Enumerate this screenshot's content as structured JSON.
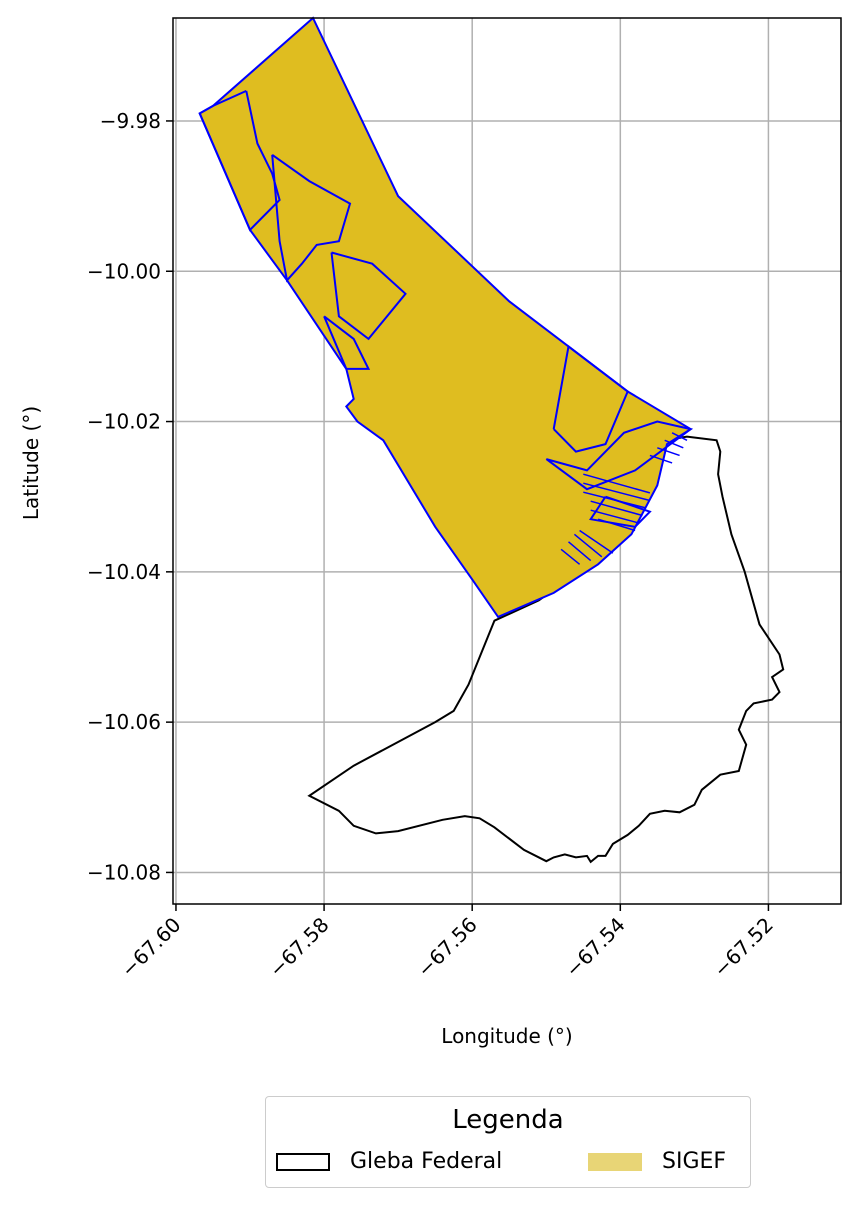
{
  "map": {
    "xlabel": "Longitude (°)",
    "ylabel": "Latitude (°)",
    "x_ticks": [
      -67.6,
      -67.58,
      -67.56,
      -67.54,
      -67.52
    ],
    "x_tick_labels": [
      "−67.60",
      "−67.58",
      "−67.56",
      "−67.54",
      "−67.52"
    ],
    "y_ticks": [
      -9.98,
      -10.0,
      -10.02,
      -10.04,
      -10.06,
      -10.08
    ],
    "y_tick_labels": [
      "−9.98",
      "−10.00",
      "−10.02",
      "−10.04",
      "−10.06",
      "−10.08"
    ],
    "xlim": [
      -67.6004,
      -67.5102
    ],
    "ylim": [
      -10.0842,
      -9.9663
    ],
    "grid": true,
    "colors": {
      "sigef_fill": "#dfbd20",
      "sigef_edge": "#0000ff",
      "gleba_edge": "#000000",
      "grid": "#b0b0b0"
    }
  },
  "gleba_federal": {
    "outline": [
      [
        -67.557,
        -10.0465
      ],
      [
        -67.551,
        -10.0438
      ],
      [
        -67.54,
        -10.036
      ],
      [
        -67.5365,
        -10.0305
      ],
      [
        -67.5348,
        -10.025
      ],
      [
        -67.534,
        -10.0225
      ],
      [
        -67.531,
        -10.022
      ],
      [
        -67.527,
        -10.0225
      ],
      [
        -67.5265,
        -10.024
      ],
      [
        -67.5268,
        -10.027
      ],
      [
        -67.5262,
        -10.03
      ],
      [
        -67.525,
        -10.035
      ],
      [
        -67.5232,
        -10.04
      ],
      [
        -67.5212,
        -10.047
      ],
      [
        -67.5185,
        -10.051
      ],
      [
        -67.518,
        -10.053
      ],
      [
        -67.5195,
        -10.054
      ],
      [
        -67.5185,
        -10.056
      ],
      [
        -67.5195,
        -10.057
      ],
      [
        -67.522,
        -10.0575
      ],
      [
        -67.523,
        -10.0585
      ],
      [
        -67.524,
        -10.061
      ],
      [
        -67.523,
        -10.063
      ],
      [
        -67.524,
        -10.0665
      ],
      [
        -67.5265,
        -10.067
      ],
      [
        -67.529,
        -10.069
      ],
      [
        -67.53,
        -10.071
      ],
      [
        -67.532,
        -10.072
      ],
      [
        -67.534,
        -10.0718
      ],
      [
        -67.536,
        -10.0722
      ],
      [
        -67.5375,
        -10.0738
      ],
      [
        -67.539,
        -10.075
      ],
      [
        -67.541,
        -10.0762
      ],
      [
        -67.542,
        -10.0778
      ],
      [
        -67.543,
        -10.0778
      ],
      [
        -67.544,
        -10.0786
      ],
      [
        -67.5445,
        -10.0778
      ],
      [
        -67.546,
        -10.078
      ],
      [
        -67.5475,
        -10.0776
      ],
      [
        -67.549,
        -10.078
      ],
      [
        -67.55,
        -10.0785
      ],
      [
        -67.553,
        -10.077
      ],
      [
        -67.557,
        -10.074
      ],
      [
        -67.559,
        -10.0728
      ],
      [
        -67.561,
        -10.0725
      ],
      [
        -67.564,
        -10.073
      ],
      [
        -67.57,
        -10.0745
      ],
      [
        -67.573,
        -10.0748
      ],
      [
        -67.576,
        -10.0738
      ],
      [
        -67.578,
        -10.0718
      ],
      [
        -67.582,
        -10.0698
      ],
      [
        -67.576,
        -10.0658
      ],
      [
        -67.565,
        -10.06
      ],
      [
        -67.5625,
        -10.0585
      ],
      [
        -67.5605,
        -10.055
      ],
      [
        -67.557,
        -10.0465
      ]
    ]
  },
  "sigef": {
    "outer": [
      [
        -67.5815,
        -9.9663
      ],
      [
        -67.595,
        -9.978
      ],
      [
        -67.5968,
        -9.979
      ],
      [
        -67.59,
        -9.9945
      ],
      [
        -67.585,
        -10.0012
      ],
      [
        -67.577,
        -10.013
      ],
      [
        -67.5765,
        -10.015
      ],
      [
        -67.576,
        -10.017
      ],
      [
        -67.577,
        -10.018
      ],
      [
        -67.5755,
        -10.02
      ],
      [
        -67.572,
        -10.0225
      ],
      [
        -67.565,
        -10.034
      ],
      [
        -67.56,
        -10.041
      ],
      [
        -67.5565,
        -10.046
      ],
      [
        -67.549,
        -10.0428
      ],
      [
        -67.543,
        -10.039
      ],
      [
        -67.5385,
        -10.035
      ],
      [
        -67.535,
        -10.0285
      ],
      [
        -67.5337,
        -10.023
      ],
      [
        -67.5305,
        -10.021
      ],
      [
        -67.539,
        -10.016
      ],
      [
        -67.555,
        -10.004
      ],
      [
        -67.57,
        -9.99
      ],
      [
        -67.5815,
        -9.9663
      ]
    ],
    "parcels": [
      [
        [
          -67.5905,
          -9.976
        ],
        [
          -67.595,
          -9.978
        ],
        [
          -67.5968,
          -9.979
        ],
        [
          -67.59,
          -9.9945
        ],
        [
          -67.586,
          -9.9905
        ],
        [
          -67.587,
          -9.987
        ],
        [
          -67.589,
          -9.983
        ],
        [
          -67.5905,
          -9.976
        ]
      ],
      [
        [
          -67.587,
          -9.9845
        ],
        [
          -67.582,
          -9.988
        ],
        [
          -67.5765,
          -9.991
        ],
        [
          -67.578,
          -9.996
        ],
        [
          -67.581,
          -9.9965
        ],
        [
          -67.583,
          -9.999
        ],
        [
          -67.585,
          -10.0012
        ],
        [
          -67.586,
          -9.996
        ],
        [
          -67.587,
          -9.9845
        ]
      ],
      [
        [
          -67.579,
          -9.9975
        ],
        [
          -67.5735,
          -9.999
        ],
        [
          -67.569,
          -10.003
        ],
        [
          -67.574,
          -10.009
        ],
        [
          -67.578,
          -10.006
        ],
        [
          -67.579,
          -9.9975
        ]
      ],
      [
        [
          -67.58,
          -10.006
        ],
        [
          -67.576,
          -10.009
        ],
        [
          -67.574,
          -10.013
        ],
        [
          -67.577,
          -10.013
        ],
        [
          -67.58,
          -10.006
        ]
      ],
      [
        [
          -67.549,
          -10.021
        ],
        [
          -67.546,
          -10.024
        ],
        [
          -67.542,
          -10.023
        ],
        [
          -67.539,
          -10.016
        ],
        [
          -67.547,
          -10.01
        ],
        [
          -67.549,
          -10.021
        ]
      ],
      [
        [
          -67.55,
          -10.025
        ],
        [
          -67.5445,
          -10.0265
        ],
        [
          -67.5395,
          -10.0215
        ],
        [
          -67.535,
          -10.02
        ],
        [
          -67.5305,
          -10.021
        ],
        [
          -67.538,
          -10.0265
        ],
        [
          -67.5445,
          -10.029
        ],
        [
          -67.55,
          -10.025
        ]
      ],
      [
        [
          -67.542,
          -10.03
        ],
        [
          -67.536,
          -10.032
        ],
        [
          -67.538,
          -10.034
        ],
        [
          -67.544,
          -10.033
        ],
        [
          -67.542,
          -10.03
        ]
      ]
    ],
    "strips": [
      [
        [
          -67.545,
          -10.027
        ],
        [
          -67.536,
          -10.0295
        ]
      ],
      [
        [
          -67.545,
          -10.0282
        ],
        [
          -67.536,
          -10.0305
        ]
      ],
      [
        [
          -67.545,
          -10.0294
        ],
        [
          -67.5365,
          -10.0315
        ]
      ],
      [
        [
          -67.544,
          -10.0306
        ],
        [
          -67.537,
          -10.0325
        ]
      ],
      [
        [
          -67.544,
          -10.0318
        ],
        [
          -67.5375,
          -10.0335
        ]
      ],
      [
        [
          -67.543,
          -10.033
        ],
        [
          -67.538,
          -10.0345
        ]
      ],
      [
        [
          -67.5455,
          -10.0345
        ],
        [
          -67.541,
          -10.0375
        ]
      ],
      [
        [
          -67.5462,
          -10.035
        ],
        [
          -67.5425,
          -10.038
        ]
      ],
      [
        [
          -67.547,
          -10.036
        ],
        [
          -67.544,
          -10.0385
        ]
      ],
      [
        [
          -67.548,
          -10.037
        ],
        [
          -67.5455,
          -10.039
        ]
      ],
      [
        [
          -67.533,
          -10.0215
        ],
        [
          -67.531,
          -10.0225
        ]
      ],
      [
        [
          -67.534,
          -10.0225
        ],
        [
          -67.5315,
          -10.0235
        ]
      ],
      [
        [
          -67.535,
          -10.0235
        ],
        [
          -67.532,
          -10.0245
        ]
      ],
      [
        [
          -67.536,
          -10.0245
        ],
        [
          -67.533,
          -10.0255
        ]
      ]
    ]
  },
  "legend": {
    "title": "Legenda",
    "entries": [
      {
        "label": "Gleba Federal",
        "style": "outline"
      },
      {
        "label": "SIGEF",
        "style": "fill",
        "color": "#e8d576"
      }
    ]
  }
}
